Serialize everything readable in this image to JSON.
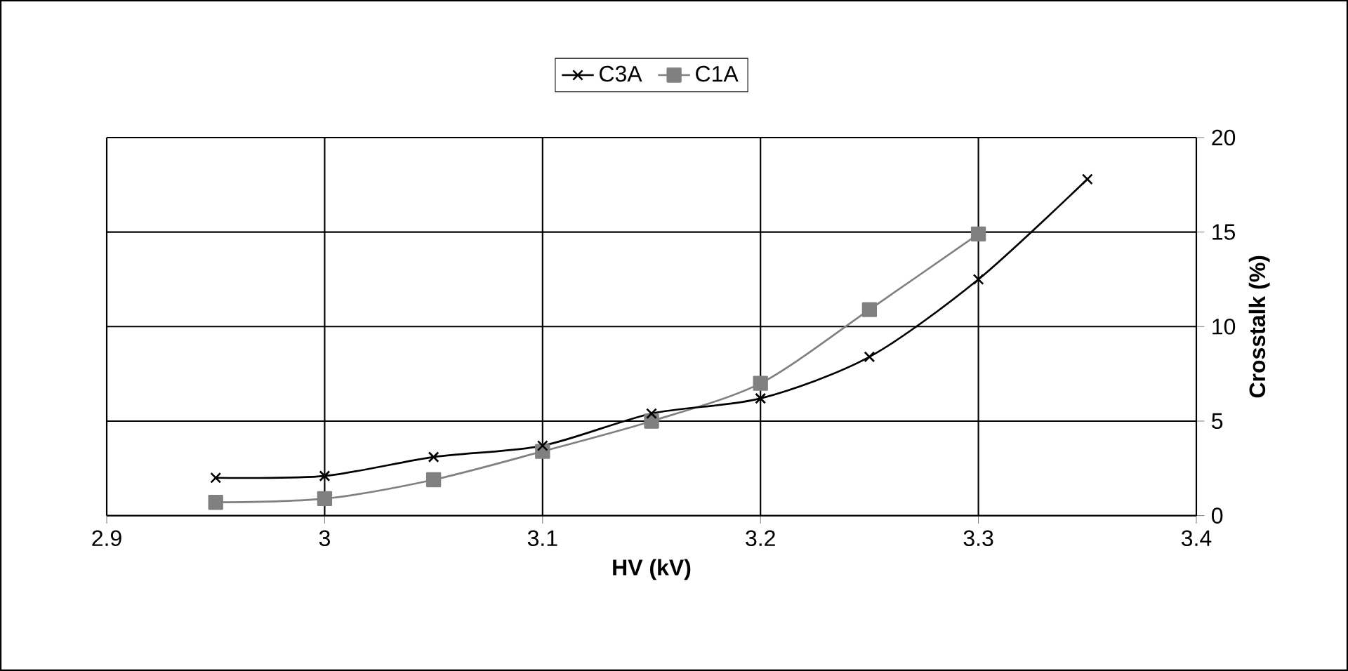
{
  "chart_data": {
    "type": "line",
    "xlabel": "HV (kV)",
    "ylabel": "Crosstalk (%)",
    "x": [
      2.95,
      3.0,
      3.05,
      3.1,
      3.15,
      3.2,
      3.25,
      3.3,
      3.35
    ],
    "series": [
      {
        "name": "C3A",
        "color": "#000000",
        "marker": "cross",
        "values": [
          2.0,
          2.1,
          3.1,
          3.7,
          5.4,
          6.2,
          8.4,
          12.5,
          17.8
        ]
      },
      {
        "name": "C1A",
        "color": "#808080",
        "marker": "square",
        "values": [
          0.7,
          0.9,
          1.9,
          3.4,
          5.0,
          7.0,
          10.9,
          14.9,
          null
        ]
      }
    ],
    "xlim": [
      2.9,
      3.4
    ],
    "xticks": [
      2.9,
      3,
      3.1,
      3.2,
      3.3,
      3.4
    ],
    "ylim": [
      0,
      20
    ],
    "yticks": [
      0,
      5,
      10,
      15,
      20
    ],
    "grid": true,
    "legend": "top",
    "line_style": "solid"
  }
}
